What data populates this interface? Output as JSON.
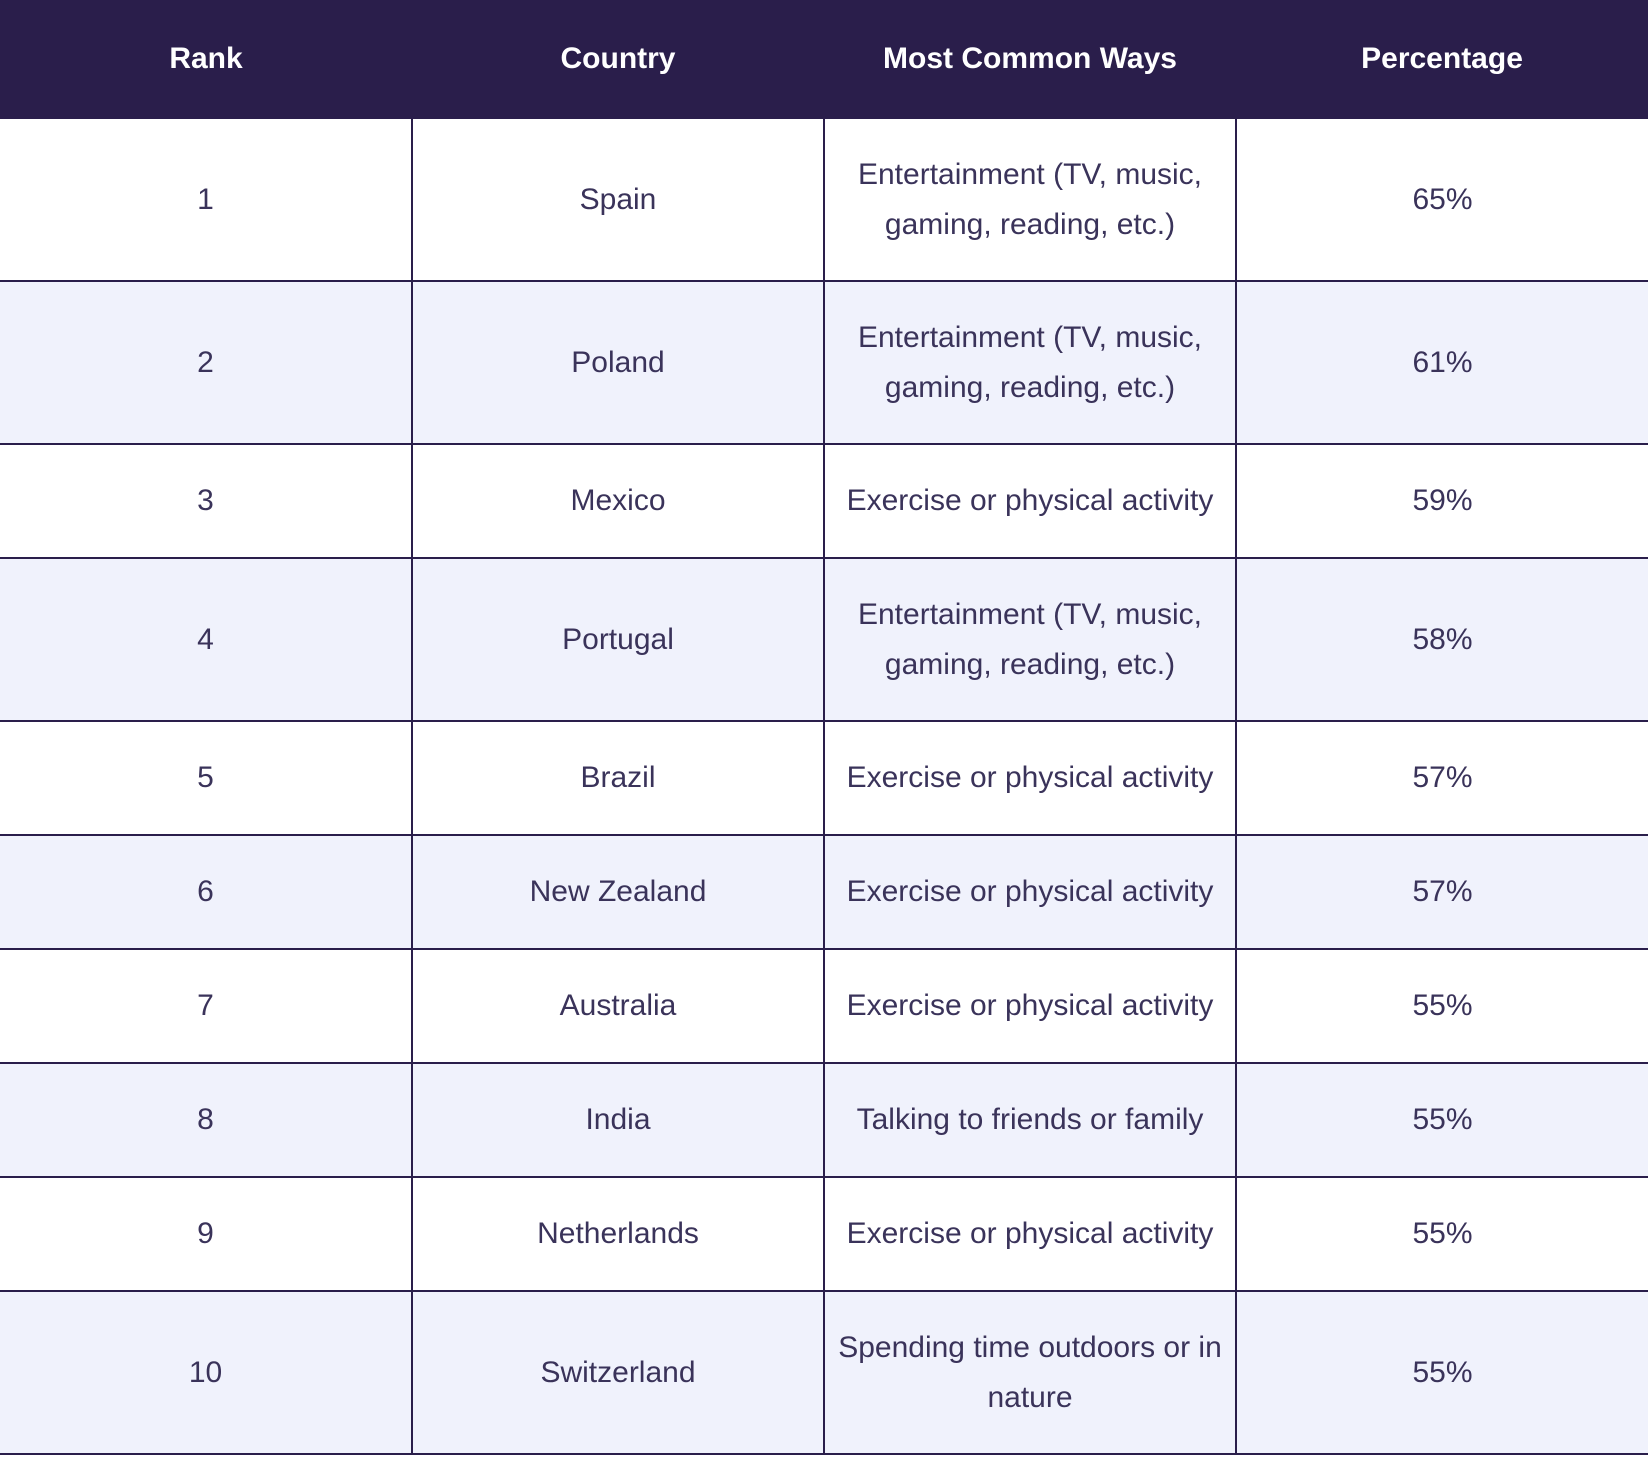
{
  "table": {
    "headers": [
      "Rank",
      "Country",
      "Most Common Ways",
      "Percentage"
    ],
    "rows": [
      {
        "rank": "1",
        "country": "Spain",
        "way": "Entertainment (TV, music, gaming, reading, etc.)",
        "percentage": "65%"
      },
      {
        "rank": "2",
        "country": "Poland",
        "way": "Entertainment (TV, music, gaming, reading, etc.)",
        "percentage": "61%"
      },
      {
        "rank": "3",
        "country": "Mexico",
        "way": "Exercise or physical activity",
        "percentage": "59%"
      },
      {
        "rank": "4",
        "country": "Portugal",
        "way": "Entertainment (TV, music, gaming, reading, etc.)",
        "percentage": "58%"
      },
      {
        "rank": "5",
        "country": "Brazil",
        "way": "Exercise or physical activity",
        "percentage": "57%"
      },
      {
        "rank": "6",
        "country": "New Zealand",
        "way": "Exercise or physical activity",
        "percentage": "57%"
      },
      {
        "rank": "7",
        "country": "Australia",
        "way": "Exercise or physical activity",
        "percentage": "55%"
      },
      {
        "rank": "8",
        "country": "India",
        "way": "Talking to friends or family",
        "percentage": "55%"
      },
      {
        "rank": "9",
        "country": "Netherlands",
        "way": "Exercise or physical activity",
        "percentage": "55%"
      },
      {
        "rank": "10",
        "country": "Switzerland",
        "way": "Spending time outdoors or in nature",
        "percentage": "55%"
      }
    ]
  },
  "colors": {
    "header_bg": "#2a1e4b",
    "alt_row_bg": "#f0f2fc",
    "text": "#3a335a"
  }
}
